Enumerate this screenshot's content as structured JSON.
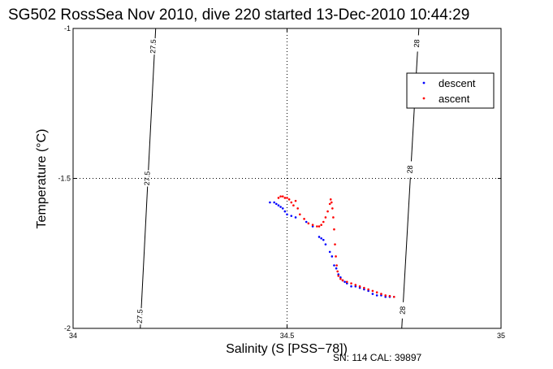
{
  "chart_data": {
    "type": "scatter",
    "title": "SG502 RossSea Nov 2010, dive 220 started 13-Dec-2010 10:44:29",
    "xlabel": "Salinity (S [PSS−78])",
    "ylabel": "Temperature (°C)",
    "xlim": [
      34,
      35
    ],
    "ylim": [
      -2,
      -1
    ],
    "x_ticks": [
      "34",
      "34.5",
      "35"
    ],
    "y_ticks": [
      "-1",
      "-1.5",
      "-2"
    ],
    "x_tick_values": [
      34,
      34.5,
      35
    ],
    "y_tick_values": [
      -1,
      -1.5,
      -2
    ],
    "grid": "dotted at 34.5 and -1.5",
    "legend_position": "upper-right",
    "footer": "SN: 114  CAL: 39897",
    "colors": {
      "descent": "#0000ff",
      "ascent": "#ff0000",
      "contour": "#000000"
    },
    "contours": [
      {
        "label": "27.5",
        "points": [
          [
            34.157,
            -2
          ],
          [
            34.193,
            -1
          ]
        ],
        "label_positions": [
          [
            34.156,
            -1.96
          ],
          [
            34.173,
            -1.5
          ],
          [
            34.187,
            -1.06
          ]
        ]
      },
      {
        "label": "28",
        "points": [
          [
            34.768,
            -2
          ],
          [
            34.808,
            -1
          ]
        ],
        "label_positions": [
          [
            34.77,
            -1.94
          ],
          [
            34.787,
            -1.47
          ],
          [
            34.803,
            -1.05
          ]
        ]
      }
    ],
    "series": [
      {
        "name": "descent",
        "points": [
          [
            34.46,
            -1.58
          ],
          [
            34.47,
            -1.58
          ],
          [
            34.475,
            -1.585
          ],
          [
            34.48,
            -1.59
          ],
          [
            34.485,
            -1.595
          ],
          [
            34.49,
            -1.6
          ],
          [
            34.495,
            -1.61
          ],
          [
            34.5,
            -1.62
          ],
          [
            34.51,
            -1.625
          ],
          [
            34.52,
            -1.63
          ],
          [
            34.545,
            -1.645
          ],
          [
            34.56,
            -1.66
          ],
          [
            34.575,
            -1.695
          ],
          [
            34.58,
            -1.7
          ],
          [
            34.585,
            -1.705
          ],
          [
            34.59,
            -1.72
          ],
          [
            34.6,
            -1.745
          ],
          [
            34.605,
            -1.76
          ],
          [
            34.61,
            -1.79
          ],
          [
            34.615,
            -1.8
          ],
          [
            34.62,
            -1.82
          ],
          [
            34.625,
            -1.83
          ],
          [
            34.63,
            -1.84
          ],
          [
            34.635,
            -1.845
          ],
          [
            34.64,
            -1.85
          ],
          [
            34.65,
            -1.86
          ],
          [
            34.66,
            -1.86
          ],
          [
            34.67,
            -1.865
          ],
          [
            34.68,
            -1.87
          ],
          [
            34.69,
            -1.875
          ],
          [
            34.7,
            -1.885
          ],
          [
            34.71,
            -1.89
          ],
          [
            34.72,
            -1.89
          ],
          [
            34.73,
            -1.895
          ],
          [
            34.74,
            -1.895
          ],
          [
            34.75,
            -1.895
          ]
        ]
      },
      {
        "name": "ascent",
        "points": [
          [
            34.48,
            -1.565
          ],
          [
            34.485,
            -1.56
          ],
          [
            34.49,
            -1.56
          ],
          [
            34.495,
            -1.565
          ],
          [
            34.5,
            -1.565
          ],
          [
            34.505,
            -1.57
          ],
          [
            34.51,
            -1.58
          ],
          [
            34.515,
            -1.59
          ],
          [
            34.52,
            -1.575
          ],
          [
            34.525,
            -1.6
          ],
          [
            34.53,
            -1.62
          ],
          [
            34.54,
            -1.635
          ],
          [
            34.55,
            -1.65
          ],
          [
            34.56,
            -1.655
          ],
          [
            34.57,
            -1.66
          ],
          [
            34.575,
            -1.66
          ],
          [
            34.58,
            -1.655
          ],
          [
            34.585,
            -1.645
          ],
          [
            34.59,
            -1.63
          ],
          [
            34.595,
            -1.61
          ],
          [
            34.6,
            -1.585
          ],
          [
            34.602,
            -1.57
          ],
          [
            34.604,
            -1.58
          ],
          [
            34.606,
            -1.6
          ],
          [
            34.608,
            -1.63
          ],
          [
            34.61,
            -1.67
          ],
          [
            34.612,
            -1.72
          ],
          [
            34.614,
            -1.76
          ],
          [
            34.616,
            -1.79
          ],
          [
            34.618,
            -1.81
          ],
          [
            34.62,
            -1.825
          ],
          [
            34.625,
            -1.835
          ],
          [
            34.63,
            -1.84
          ],
          [
            34.64,
            -1.845
          ],
          [
            34.65,
            -1.85
          ],
          [
            34.66,
            -1.855
          ],
          [
            34.67,
            -1.86
          ],
          [
            34.68,
            -1.865
          ],
          [
            34.69,
            -1.87
          ],
          [
            34.7,
            -1.875
          ],
          [
            34.71,
            -1.88
          ],
          [
            34.72,
            -1.885
          ],
          [
            34.73,
            -1.89
          ],
          [
            34.74,
            -1.892
          ],
          [
            34.75,
            -1.895
          ]
        ]
      }
    ]
  }
}
